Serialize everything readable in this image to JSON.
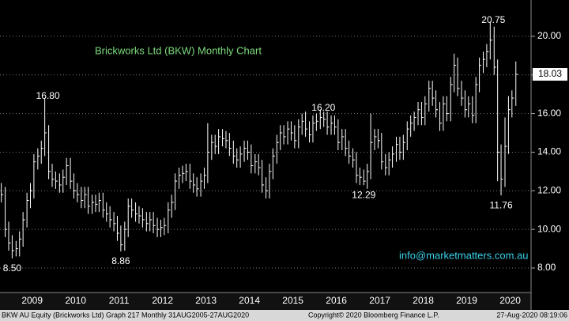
{
  "chart_data": {
    "type": "ohlc",
    "title": "Brickworks Ltd (BKW) Monthly Chart",
    "source": "info@marketmatters.com.au",
    "footer": [
      "BKW AU Equity (Brickworks Ltd) Graph 217  Monthly 31AUG2005-27AUG2020",
      "Copyright© 2020 Bloomberg Finance L.P.",
      "27-Aug-2020 08:19:06"
    ],
    "color": "#ffffff",
    "xlim": [
      2008.76,
      2020.98
    ],
    "xticks": [
      {
        "value": 2009.5,
        "label": "2009"
      },
      {
        "value": 2010.5,
        "label": "2010"
      },
      {
        "value": 2011.5,
        "label": "2011"
      },
      {
        "value": 2012.5,
        "label": "2012"
      },
      {
        "value": 2013.5,
        "label": "2013"
      },
      {
        "value": 2014.5,
        "label": "2014"
      },
      {
        "value": 2015.5,
        "label": "2015"
      },
      {
        "value": 2016.5,
        "label": "2016"
      },
      {
        "value": 2017.5,
        "label": "2017"
      },
      {
        "value": 2018.5,
        "label": "2018"
      },
      {
        "value": 2019.5,
        "label": "2019"
      },
      {
        "value": 2020.5,
        "label": "2020"
      }
    ],
    "ylim": [
      6.73,
      21.88
    ],
    "yticks": [
      {
        "value": 8,
        "label": "8.00"
      },
      {
        "value": 10,
        "label": "10.00"
      },
      {
        "value": 12,
        "label": "12.00"
      },
      {
        "value": 14,
        "label": "14.00"
      },
      {
        "value": 16,
        "label": "16.00"
      },
      {
        "value": 18,
        "label": "18.00"
      },
      {
        "value": 20,
        "label": "20.00"
      }
    ],
    "grid": true,
    "annotations": [
      {
        "value": 16.8,
        "label": "16.80"
      },
      {
        "value": 8.5,
        "label": "8.50"
      },
      {
        "value": 8.86,
        "label": "8.86"
      },
      {
        "value": 16.2,
        "label": "16.20"
      },
      {
        "value": 12.29,
        "label": "12.29"
      },
      {
        "value": 20.75,
        "label": "20.75"
      },
      {
        "value": 11.76,
        "label": "11.76"
      }
    ],
    "x": [
      2008.79,
      2008.88,
      2008.96,
      2009.04,
      2009.13,
      2009.21,
      2009.29,
      2009.38,
      2009.46,
      2009.54,
      2009.63,
      2009.71,
      2009.79,
      2009.88,
      2009.96,
      2010.04,
      2010.13,
      2010.21,
      2010.29,
      2010.38,
      2010.46,
      2010.54,
      2010.63,
      2010.71,
      2010.79,
      2010.88,
      2010.96,
      2011.04,
      2011.13,
      2011.21,
      2011.29,
      2011.38,
      2011.46,
      2011.54,
      2011.63,
      2011.71,
      2011.79,
      2011.88,
      2011.96,
      2012.04,
      2012.13,
      2012.21,
      2012.29,
      2012.38,
      2012.46,
      2012.54,
      2012.63,
      2012.71,
      2012.79,
      2012.88,
      2012.96,
      2013.04,
      2013.13,
      2013.21,
      2013.29,
      2013.38,
      2013.46,
      2013.54,
      2013.63,
      2013.71,
      2013.79,
      2013.88,
      2013.96,
      2014.04,
      2014.13,
      2014.21,
      2014.29,
      2014.38,
      2014.46,
      2014.54,
      2014.63,
      2014.71,
      2014.79,
      2014.88,
      2014.96,
      2015.04,
      2015.13,
      2015.21,
      2015.29,
      2015.38,
      2015.46,
      2015.54,
      2015.63,
      2015.71,
      2015.79,
      2015.88,
      2015.96,
      2016.04,
      2016.13,
      2016.21,
      2016.29,
      2016.38,
      2016.46,
      2016.54,
      2016.63,
      2016.71,
      2016.79,
      2016.88,
      2016.96,
      2017.04,
      2017.13,
      2017.21,
      2017.29,
      2017.38,
      2017.46,
      2017.54,
      2017.63,
      2017.71,
      2017.79,
      2017.88,
      2017.96,
      2018.04,
      2018.13,
      2018.21,
      2018.29,
      2018.38,
      2018.46,
      2018.54,
      2018.63,
      2018.71,
      2018.79,
      2018.88,
      2018.96,
      2019.04,
      2019.13,
      2019.21,
      2019.29,
      2019.38,
      2019.46,
      2019.54,
      2019.63,
      2019.71,
      2019.79,
      2019.88,
      2019.96,
      2020.04,
      2020.13,
      2020.21,
      2020.29,
      2020.38,
      2020.46,
      2020.54,
      2020.63
    ],
    "high": [
      12.4,
      12.2,
      10.4,
      9.7,
      9.4,
      9.9,
      10.9,
      11.9,
      12.4,
      13.9,
      14.2,
      14.6,
      16.8,
      15.4,
      13.4,
      13.0,
      12.9,
      13.1,
      13.7,
      13.7,
      12.9,
      12.4,
      12.2,
      12.2,
      12.2,
      11.8,
      11.8,
      11.9,
      11.9,
      11.4,
      11.2,
      10.9,
      10.7,
      10.2,
      10.4,
      11.6,
      11.6,
      11.4,
      11.2,
      11.1,
      10.9,
      10.9,
      10.9,
      10.6,
      10.5,
      10.6,
      11.4,
      11.8,
      12.9,
      13.2,
      13.3,
      13.4,
      13.4,
      12.9,
      12.7,
      12.9,
      13.2,
      15.5,
      14.9,
      14.9,
      15.2,
      15.2,
      15.1,
      15.0,
      14.6,
      14.2,
      14.3,
      14.6,
      14.6,
      14.4,
      13.9,
      13.9,
      13.6,
      12.7,
      13.4,
      14.2,
      14.9,
      15.4,
      15.4,
      15.6,
      15.6,
      15.4,
      15.7,
      16.0,
      16.1,
      15.6,
      15.9,
      16.0,
      16.2,
      16.1,
      16.1,
      15.9,
      15.9,
      15.7,
      15.2,
      15.2,
      14.6,
      14.2,
      14.0,
      13.2,
      13.1,
      13.4,
      16.0,
      15.2,
      15.2,
      15.0,
      13.9,
      14.0,
      14.3,
      14.8,
      14.8,
      14.9,
      15.6,
      15.9,
      16.1,
      16.6,
      16.6,
      16.9,
      17.7,
      17.7,
      17.2,
      16.6,
      16.9,
      16.9,
      17.9,
      19.1,
      18.9,
      17.7,
      17.2,
      16.9,
      16.9,
      17.9,
      18.9,
      19.2,
      19.6,
      20.75,
      20.5,
      18.8,
      14.4,
      15.8,
      16.9,
      17.2,
      18.7
    ],
    "low": [
      11.4,
      9.6,
      8.9,
      8.5,
      8.6,
      8.6,
      9.1,
      10.1,
      11.1,
      11.6,
      13.1,
      13.4,
      13.8,
      12.6,
      12.2,
      12.1,
      11.9,
      11.9,
      12.3,
      12.1,
      11.6,
      11.4,
      11.1,
      11.1,
      10.8,
      10.8,
      10.9,
      10.9,
      10.6,
      10.4,
      10.1,
      9.9,
      9.4,
      8.86,
      8.9,
      9.6,
      10.6,
      10.4,
      10.3,
      10.1,
      9.9,
      9.9,
      9.8,
      9.6,
      9.6,
      9.7,
      9.8,
      10.6,
      11.0,
      12.1,
      12.4,
      12.5,
      12.1,
      11.9,
      11.7,
      11.7,
      12.1,
      12.4,
      13.6,
      13.9,
      13.9,
      14.3,
      14.2,
      13.8,
      13.4,
      13.2,
      13.2,
      13.5,
      13.6,
      12.9,
      12.9,
      12.8,
      11.9,
      11.6,
      11.6,
      12.6,
      13.4,
      14.1,
      14.4,
      14.4,
      14.6,
      14.2,
      14.2,
      14.9,
      14.8,
      14.5,
      14.5,
      15.1,
      15.2,
      15.3,
      14.9,
      14.9,
      14.9,
      14.1,
      14.1,
      13.8,
      13.4,
      13.2,
      12.4,
      12.3,
      12.29,
      12.1,
      12.6,
      14.1,
      14.2,
      13.1,
      12.8,
      12.8,
      13.2,
      13.5,
      13.6,
      13.6,
      14.1,
      14.8,
      15.1,
      15.4,
      15.4,
      15.4,
      16.1,
      16.4,
      15.8,
      15.1,
      15.1,
      15.6,
      15.6,
      17.1,
      16.9,
      16.4,
      15.8,
      15.8,
      15.5,
      15.5,
      17.1,
      18.1,
      18.4,
      18.8,
      18.0,
      12.5,
      11.76,
      12.2,
      13.9,
      15.8,
      16.4
    ],
    "close": [
      11.8,
      10.0,
      9.3,
      8.9,
      9.0,
      9.5,
      10.5,
      11.5,
      12.0,
      13.5,
      13.8,
      14.2,
      15.0,
      13.0,
      12.6,
      12.5,
      12.3,
      12.7,
      13.3,
      12.5,
      12.0,
      11.8,
      11.5,
      11.8,
      11.2,
      11.4,
      11.3,
      11.5,
      11.0,
      10.8,
      10.5,
      10.3,
      9.8,
      9.2,
      10.0,
      11.2,
      11.0,
      10.8,
      10.7,
      10.5,
      10.3,
      10.5,
      10.2,
      10.0,
      10.1,
      10.2,
      11.0,
      11.4,
      12.5,
      12.8,
      12.9,
      13.0,
      12.5,
      12.3,
      12.1,
      12.5,
      12.8,
      14.0,
      14.5,
      14.3,
      14.8,
      14.7,
      14.6,
      14.2,
      13.8,
      13.6,
      13.9,
      14.2,
      14.0,
      13.3,
      13.5,
      13.2,
      12.3,
      12.0,
      13.0,
      13.8,
      14.5,
      15.0,
      14.8,
      15.2,
      15.0,
      14.6,
      15.3,
      15.6,
      15.2,
      14.9,
      15.5,
      15.6,
      15.8,
      15.7,
      15.3,
      15.5,
      15.3,
      14.5,
      14.8,
      14.2,
      13.8,
      13.6,
      12.8,
      12.7,
      12.5,
      13.0,
      14.5,
      14.8,
      14.6,
      13.5,
      13.2,
      13.6,
      13.9,
      14.4,
      14.0,
      14.5,
      15.2,
      15.5,
      15.8,
      16.2,
      15.8,
      16.5,
      17.3,
      16.8,
      16.2,
      15.5,
      16.5,
      16.0,
      17.5,
      18.5,
      17.3,
      16.8,
      16.2,
      16.5,
      15.9,
      17.5,
      18.5,
      18.8,
      19.2,
      19.8,
      18.4,
      14.0,
      12.6,
      14.3,
      16.2,
      16.8,
      18.03
    ]
  }
}
